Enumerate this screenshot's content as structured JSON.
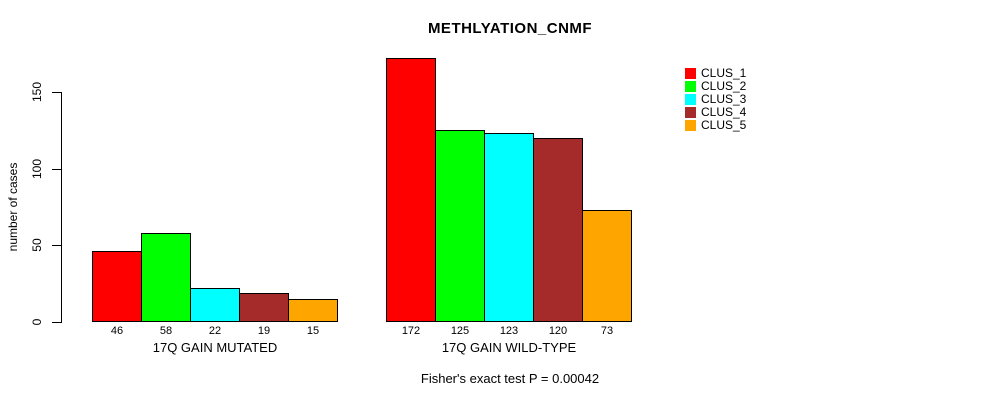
{
  "chart_data": {
    "type": "bar",
    "title": "METHLYATION_CNMF",
    "ylabel": "number of cases",
    "xlabel": "",
    "categories": [
      "17Q GAIN MUTATED",
      "17Q GAIN WILD-TYPE"
    ],
    "series": [
      {
        "name": "CLUS_1",
        "color": "#FF0000",
        "values": [
          46,
          172
        ]
      },
      {
        "name": "CLUS_2",
        "color": "#00FF00",
        "values": [
          58,
          125
        ]
      },
      {
        "name": "CLUS_3",
        "color": "#00FFFF",
        "values": [
          22,
          123
        ]
      },
      {
        "name": "CLUS_4",
        "color": "#A52A2A",
        "values": [
          19,
          120
        ]
      },
      {
        "name": "CLUS_5",
        "color": "#FFA500",
        "values": [
          15,
          73
        ]
      }
    ],
    "yticks": [
      0,
      50,
      100,
      150
    ],
    "ylim": [
      0,
      175
    ],
    "grid": false,
    "show_bar_values": true,
    "legend_position": "right",
    "annotation": "Fisher's exact test P = 0.00042"
  }
}
